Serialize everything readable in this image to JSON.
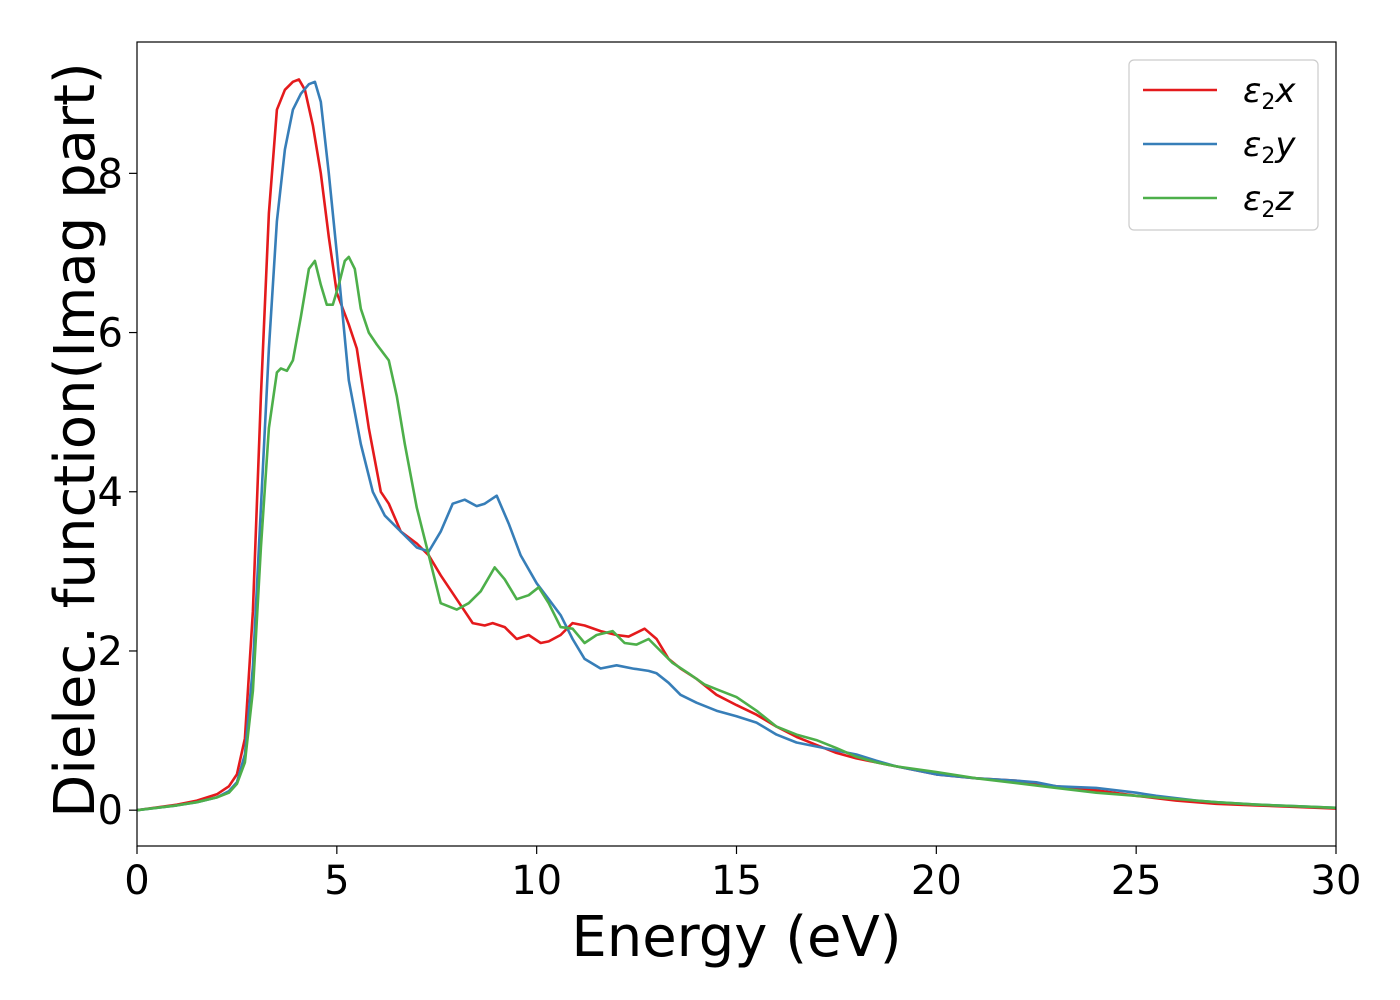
{
  "chart_data": {
    "type": "line",
    "title": "",
    "xlabel": "Energy (eV)",
    "ylabel": "Dielec. function(Imag part)",
    "xlim": [
      0,
      30
    ],
    "ylim": [
      -0.45,
      9.65
    ],
    "xticks": [
      0,
      5,
      10,
      15,
      20,
      25,
      30
    ],
    "xtick_labels": [
      "0",
      "5",
      "10",
      "15",
      "20",
      "25",
      "30"
    ],
    "yticks": [
      0,
      2,
      4,
      6,
      8
    ],
    "ytick_labels": [
      "0",
      "2",
      "4",
      "6",
      "8"
    ],
    "grid": false,
    "legend_position": "top-right",
    "series": [
      {
        "name": "ε2x",
        "label_base": "ε",
        "label_sub": "2",
        "label_suffix": "x",
        "color": "#e41a1c",
        "x": [
          0,
          1,
          1.5,
          2,
          2.3,
          2.5,
          2.7,
          2.9,
          3.1,
          3.3,
          3.5,
          3.7,
          3.9,
          4.05,
          4.2,
          4.4,
          4.6,
          4.8,
          5.0,
          5.3,
          5.5,
          5.8,
          6.1,
          6.3,
          6.6,
          7.0,
          7.3,
          7.6,
          8.0,
          8.4,
          8.7,
          8.9,
          9.2,
          9.5,
          9.8,
          10.1,
          10.3,
          10.6,
          10.9,
          11.2,
          11.6,
          12.0,
          12.3,
          12.7,
          13.0,
          13.3,
          13.6,
          14.0,
          14.5,
          15.0,
          15.5,
          16.0,
          16.5,
          17.0,
          17.5,
          18.0,
          18.5,
          19.0,
          20.0,
          21.0,
          22.0,
          23.0,
          24.0,
          25.0,
          25.5,
          26.0,
          26.5,
          27.0,
          28.0,
          29.0,
          30.0
        ],
        "y": [
          0,
          0.07,
          0.12,
          0.2,
          0.3,
          0.45,
          0.9,
          2.5,
          5.2,
          7.5,
          8.8,
          9.05,
          9.15,
          9.18,
          9.05,
          8.6,
          8.0,
          7.2,
          6.5,
          6.1,
          5.8,
          4.8,
          4.0,
          3.85,
          3.5,
          3.35,
          3.2,
          2.95,
          2.65,
          2.35,
          2.32,
          2.35,
          2.3,
          2.15,
          2.2,
          2.1,
          2.12,
          2.2,
          2.35,
          2.32,
          2.25,
          2.2,
          2.18,
          2.28,
          2.15,
          1.9,
          1.78,
          1.65,
          1.45,
          1.32,
          1.2,
          1.05,
          0.92,
          0.82,
          0.72,
          0.65,
          0.6,
          0.55,
          0.45,
          0.4,
          0.37,
          0.3,
          0.25,
          0.18,
          0.15,
          0.12,
          0.1,
          0.08,
          0.06,
          0.04,
          0.02
        ]
      },
      {
        "name": "ε2y",
        "label_base": "ε",
        "label_sub": "2",
        "label_suffix": "y",
        "color": "#377eb8",
        "x": [
          0,
          1,
          1.5,
          2,
          2.3,
          2.5,
          2.7,
          2.9,
          3.1,
          3.3,
          3.5,
          3.7,
          3.9,
          4.1,
          4.3,
          4.45,
          4.6,
          4.8,
          5.0,
          5.3,
          5.6,
          5.9,
          6.2,
          6.5,
          6.8,
          7.0,
          7.3,
          7.6,
          7.9,
          8.2,
          8.5,
          8.7,
          9.0,
          9.3,
          9.6,
          10.0,
          10.3,
          10.6,
          10.9,
          11.2,
          11.6,
          12.0,
          12.4,
          12.8,
          13.0,
          13.3,
          13.6,
          14.0,
          14.5,
          15.0,
          15.5,
          16.0,
          16.5,
          17.0,
          17.5,
          18.0,
          18.5,
          19.0,
          20.0,
          21.0,
          22.0,
          22.5,
          23.0,
          24.0,
          25.0,
          25.5,
          26.0,
          26.5,
          27.0,
          28.0,
          29.0,
          30.0
        ],
        "y": [
          0,
          0.06,
          0.1,
          0.16,
          0.24,
          0.35,
          0.7,
          1.8,
          3.8,
          5.8,
          7.4,
          8.3,
          8.8,
          9.0,
          9.12,
          9.15,
          8.9,
          8.0,
          7.0,
          5.4,
          4.6,
          4.0,
          3.7,
          3.55,
          3.4,
          3.3,
          3.25,
          3.5,
          3.85,
          3.9,
          3.82,
          3.85,
          3.95,
          3.6,
          3.2,
          2.85,
          2.65,
          2.45,
          2.15,
          1.9,
          1.78,
          1.82,
          1.78,
          1.75,
          1.72,
          1.6,
          1.45,
          1.35,
          1.25,
          1.18,
          1.1,
          0.95,
          0.85,
          0.8,
          0.75,
          0.7,
          0.62,
          0.55,
          0.45,
          0.4,
          0.37,
          0.35,
          0.3,
          0.28,
          0.22,
          0.18,
          0.15,
          0.12,
          0.1,
          0.07,
          0.05,
          0.03
        ]
      },
      {
        "name": "ε2z",
        "label_base": "ε",
        "label_sub": "2",
        "label_suffix": "z",
        "color": "#4daf4a",
        "x": [
          0,
          1,
          1.5,
          2,
          2.3,
          2.5,
          2.7,
          2.9,
          3.1,
          3.3,
          3.5,
          3.6,
          3.75,
          3.9,
          4.1,
          4.3,
          4.45,
          4.6,
          4.75,
          4.9,
          5.05,
          5.2,
          5.3,
          5.45,
          5.6,
          5.8,
          6.0,
          6.3,
          6.5,
          6.7,
          7.0,
          7.3,
          7.6,
          8.0,
          8.3,
          8.6,
          8.95,
          9.2,
          9.5,
          9.8,
          10.05,
          10.3,
          10.6,
          10.9,
          11.2,
          11.5,
          11.9,
          12.2,
          12.5,
          12.8,
          13.1,
          13.4,
          13.8,
          14.2,
          14.6,
          15.0,
          15.5,
          16.0,
          16.5,
          17.0,
          17.5,
          18.0,
          18.5,
          19.0,
          20.0,
          21.0,
          22.0,
          23.0,
          24.0,
          25.0,
          26.0,
          27.0,
          28.0,
          29.0,
          30.0
        ],
        "y": [
          0,
          0.06,
          0.1,
          0.16,
          0.22,
          0.33,
          0.6,
          1.5,
          3.3,
          4.8,
          5.5,
          5.55,
          5.52,
          5.65,
          6.2,
          6.8,
          6.9,
          6.6,
          6.35,
          6.35,
          6.6,
          6.9,
          6.95,
          6.8,
          6.3,
          6.0,
          5.85,
          5.65,
          5.2,
          4.6,
          3.8,
          3.2,
          2.6,
          2.52,
          2.6,
          2.75,
          3.05,
          2.9,
          2.65,
          2.7,
          2.8,
          2.6,
          2.3,
          2.28,
          2.1,
          2.2,
          2.25,
          2.1,
          2.08,
          2.15,
          2.0,
          1.85,
          1.72,
          1.58,
          1.5,
          1.42,
          1.25,
          1.05,
          0.95,
          0.88,
          0.78,
          0.67,
          0.6,
          0.55,
          0.48,
          0.4,
          0.34,
          0.28,
          0.22,
          0.18,
          0.14,
          0.1,
          0.07,
          0.05,
          0.03
        ]
      }
    ]
  }
}
